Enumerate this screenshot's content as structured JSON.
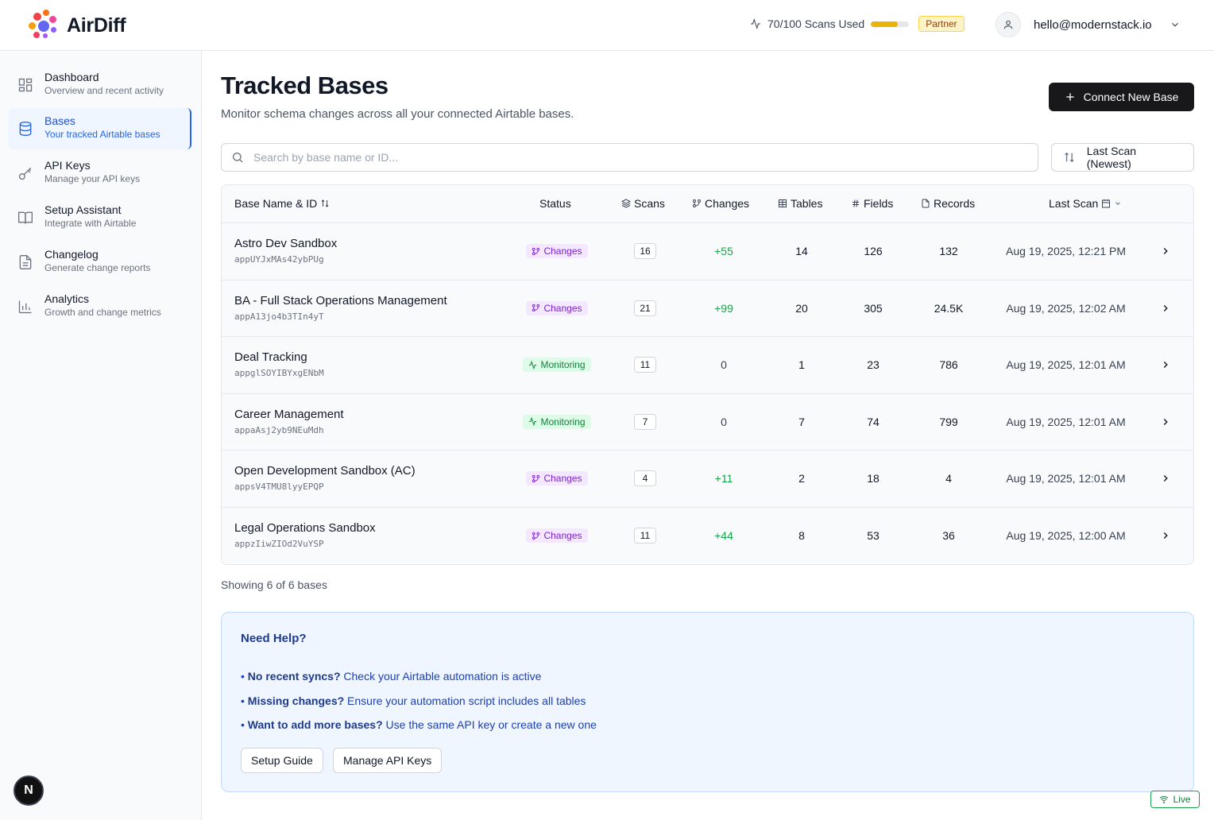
{
  "app": {
    "name": "AirDiff"
  },
  "header": {
    "usage_text": "70/100 Scans Used",
    "usage_fraction": 0.7,
    "plan_badge": "Partner",
    "user_email": "hello@modernstack.io"
  },
  "sidebar": {
    "items": [
      {
        "title": "Dashboard",
        "subtitle": "Overview and recent activity",
        "icon": "dashboard-icon"
      },
      {
        "title": "Bases",
        "subtitle": "Your tracked Airtable bases",
        "icon": "database-icon",
        "active": true
      },
      {
        "title": "API Keys",
        "subtitle": "Manage your API keys",
        "icon": "key-icon"
      },
      {
        "title": "Setup Assistant",
        "subtitle": "Integrate with Airtable",
        "icon": "book-icon"
      },
      {
        "title": "Changelog",
        "subtitle": "Generate change reports",
        "icon": "file-icon"
      },
      {
        "title": "Analytics",
        "subtitle": "Growth and change metrics",
        "icon": "bar-chart-icon"
      }
    ]
  },
  "page": {
    "title": "Tracked Bases",
    "subtitle": "Monitor schema changes across all your connected Airtable bases.",
    "connect_label": "Connect New Base",
    "search_placeholder": "Search by base name or ID...",
    "sort_value": "Last Scan (Newest)"
  },
  "table": {
    "headers": {
      "name": "Base Name & ID",
      "status": "Status",
      "scans": "Scans",
      "changes": "Changes",
      "tables": "Tables",
      "fields": "Fields",
      "records": "Records",
      "last_scan": "Last Scan"
    },
    "rows": [
      {
        "name": "Astro Dev Sandbox",
        "id": "appUYJxMAs42ybPUg",
        "status": "Changes",
        "scans": "16",
        "changes": "+55",
        "tables": "14",
        "fields": "126",
        "records": "132",
        "last_scan": "Aug 19, 2025, 12:21 PM"
      },
      {
        "name": "BA - Full Stack Operations Management",
        "id": "appA13jo4b3TIn4yT",
        "status": "Changes",
        "scans": "21",
        "changes": "+99",
        "tables": "20",
        "fields": "305",
        "records": "24.5K",
        "last_scan": "Aug 19, 2025, 12:02 AM"
      },
      {
        "name": "Deal Tracking",
        "id": "appglSOYIBYxgENbM",
        "status": "Monitoring",
        "scans": "11",
        "changes": "0",
        "tables": "1",
        "fields": "23",
        "records": "786",
        "last_scan": "Aug 19, 2025, 12:01 AM"
      },
      {
        "name": "Career Management",
        "id": "appaAsj2yb9NEuMdh",
        "status": "Monitoring",
        "scans": "7",
        "changes": "0",
        "tables": "7",
        "fields": "74",
        "records": "799",
        "last_scan": "Aug 19, 2025, 12:01 AM"
      },
      {
        "name": "Open Development Sandbox (AC)",
        "id": "appsV4TMU8lyyEPQP",
        "status": "Changes",
        "scans": "4",
        "changes": "+11",
        "tables": "2",
        "fields": "18",
        "records": "4",
        "last_scan": "Aug 19, 2025, 12:01 AM"
      },
      {
        "name": "Legal Operations Sandbox",
        "id": "appzIiwZIOd2VuYSP",
        "status": "Changes",
        "scans": "11",
        "changes": "+44",
        "tables": "8",
        "fields": "53",
        "records": "36",
        "last_scan": "Aug 19, 2025, 12:00 AM"
      }
    ]
  },
  "footer": {
    "showing": "Showing 6 of 6 bases"
  },
  "help": {
    "title": "Need Help?",
    "lines": [
      {
        "bold": "No recent syncs?",
        "text": " Check your Airtable automation is active"
      },
      {
        "bold": "Missing changes?",
        "text": " Ensure your automation script includes all tables"
      },
      {
        "bold": "Want to add more bases?",
        "text": " Use the same API key or create a new one"
      }
    ],
    "setup_label": "Setup Guide",
    "api_label": "Manage API Keys"
  },
  "live_label": "Live",
  "dev_badge": "N",
  "colors": {
    "accent": "#2563eb",
    "primary_button": "#18181b",
    "changes": "#7e22ce",
    "monitoring": "#15803d",
    "positive": "#16a34a"
  }
}
